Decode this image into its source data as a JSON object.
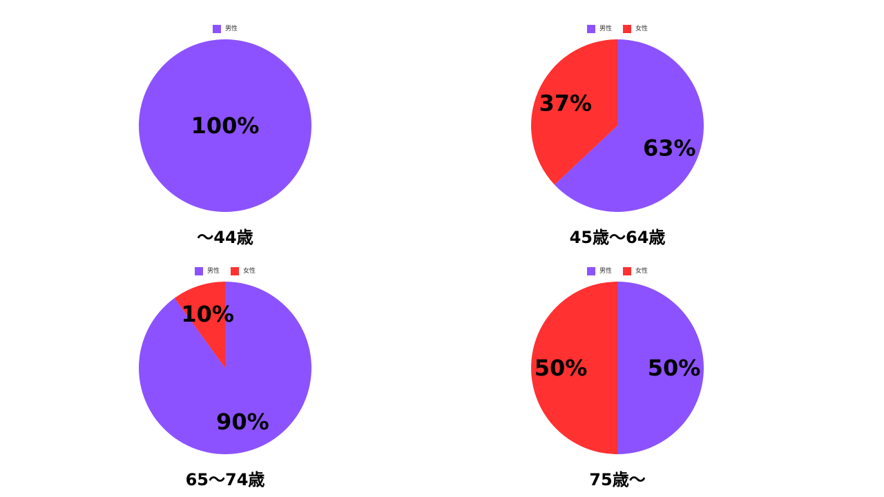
{
  "chart_data": [
    {
      "type": "pie",
      "caption": "～44歳",
      "legend": [
        "男性"
      ],
      "series": [
        {
          "name": "男性",
          "value": 100,
          "label": "100%",
          "color": "#8C52FF"
        }
      ]
    },
    {
      "type": "pie",
      "caption": "45歳～64歳",
      "legend": [
        "男性",
        "女性"
      ],
      "series": [
        {
          "name": "男性",
          "value": 63,
          "label": "63%",
          "color": "#8C52FF"
        },
        {
          "name": "女性",
          "value": 37,
          "label": "37%",
          "color": "#FF3131"
        }
      ]
    },
    {
      "type": "pie",
      "caption": "65～74歳",
      "legend": [
        "男性",
        "女性"
      ],
      "series": [
        {
          "name": "男性",
          "value": 90,
          "label": "90%",
          "color": "#8C52FF"
        },
        {
          "name": "女性",
          "value": 10,
          "label": "10%",
          "color": "#FF3131"
        }
      ]
    },
    {
      "type": "pie",
      "caption": "75歳～",
      "legend": [
        "男性",
        "女性"
      ],
      "series": [
        {
          "name": "男性",
          "value": 50,
          "label": "50%",
          "color": "#8C52FF"
        },
        {
          "name": "女性",
          "value": 50,
          "label": "50%",
          "color": "#FF3131"
        }
      ]
    }
  ]
}
